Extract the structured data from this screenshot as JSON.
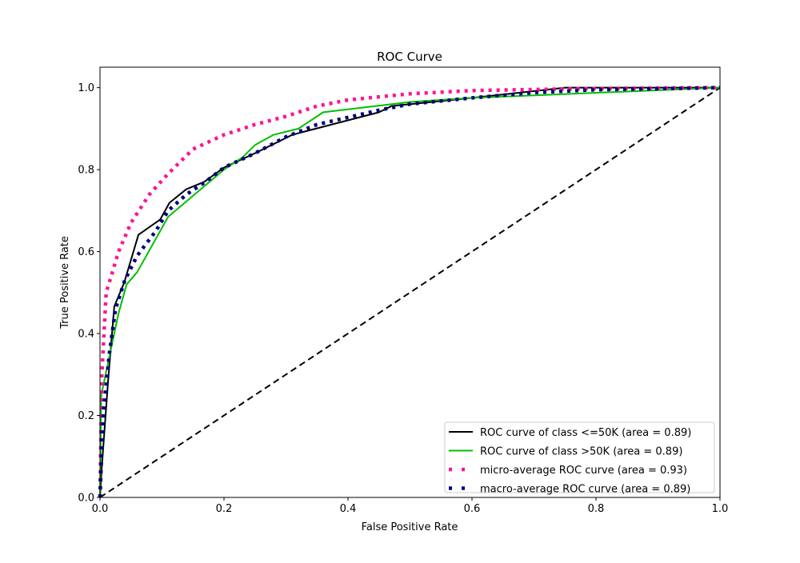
{
  "chart_data": {
    "type": "line",
    "title": "ROC Curve",
    "xlabel": "False Positive Rate",
    "ylabel": "True Positive Rate",
    "xlim": [
      0,
      1.0
    ],
    "ylim": [
      0,
      1.05
    ],
    "xticks": [
      "0.0",
      "0.2",
      "0.4",
      "0.6",
      "0.8",
      "1.0"
    ],
    "yticks": [
      "0.0",
      "0.2",
      "0.4",
      "0.6",
      "0.8",
      "1.0"
    ],
    "grid": false,
    "legend_position": "lower-right",
    "series": [
      {
        "name": "ROC curve of class  <=50K (area = 0.89)",
        "color": "#000000",
        "style": "solid",
        "x": [
          0,
          0.003,
          0.013,
          0.023,
          0.039,
          0.062,
          0.097,
          0.112,
          0.139,
          0.168,
          0.2,
          0.25,
          0.31,
          0.45,
          0.47,
          0.6,
          0.75,
          1.0
        ],
        "y": [
          0,
          0.076,
          0.283,
          0.466,
          0.524,
          0.641,
          0.678,
          0.719,
          0.752,
          0.77,
          0.805,
          0.84,
          0.885,
          0.94,
          0.955,
          0.975,
          1.0,
          1.0
        ]
      },
      {
        "name": "ROC curve of class  >50K (area = 0.89)",
        "color": "#00bf00",
        "style": "solid",
        "x": [
          0,
          0.002,
          0.03,
          0.043,
          0.06,
          0.11,
          0.2,
          0.23,
          0.25,
          0.28,
          0.32,
          0.36,
          0.5,
          0.6,
          1.0
        ],
        "y": [
          0,
          0.25,
          0.45,
          0.52,
          0.55,
          0.685,
          0.8,
          0.83,
          0.86,
          0.885,
          0.9,
          0.94,
          0.965,
          0.975,
          1.0
        ]
      },
      {
        "name": "micro-average ROC curve (area = 0.93)",
        "color": "#ff1493",
        "style": "dotted",
        "x": [
          0,
          0.003,
          0.01,
          0.03,
          0.05,
          0.08,
          0.11,
          0.15,
          0.2,
          0.25,
          0.3,
          0.35,
          0.4,
          0.5,
          0.6,
          0.8,
          1.0
        ],
        "y": [
          0,
          0.3,
          0.5,
          0.6,
          0.67,
          0.74,
          0.79,
          0.85,
          0.885,
          0.91,
          0.93,
          0.955,
          0.97,
          0.985,
          0.993,
          0.998,
          1.0
        ]
      },
      {
        "name": "macro-average ROC curve (area = 0.89)",
        "color": "#000080",
        "style": "dotted",
        "x": [
          0,
          0.005,
          0.015,
          0.025,
          0.04,
          0.06,
          0.09,
          0.11,
          0.14,
          0.17,
          0.2,
          0.25,
          0.3,
          0.35,
          0.45,
          0.5,
          0.6,
          0.7,
          0.8,
          1.0
        ],
        "y": [
          0,
          0.2,
          0.35,
          0.46,
          0.53,
          0.59,
          0.65,
          0.7,
          0.74,
          0.77,
          0.805,
          0.84,
          0.88,
          0.91,
          0.945,
          0.96,
          0.975,
          0.988,
          0.995,
          1.0
        ]
      }
    ],
    "reference_line": {
      "x": [
        0,
        1
      ],
      "y": [
        0,
        1
      ],
      "color": "#000000",
      "style": "dashed"
    }
  }
}
